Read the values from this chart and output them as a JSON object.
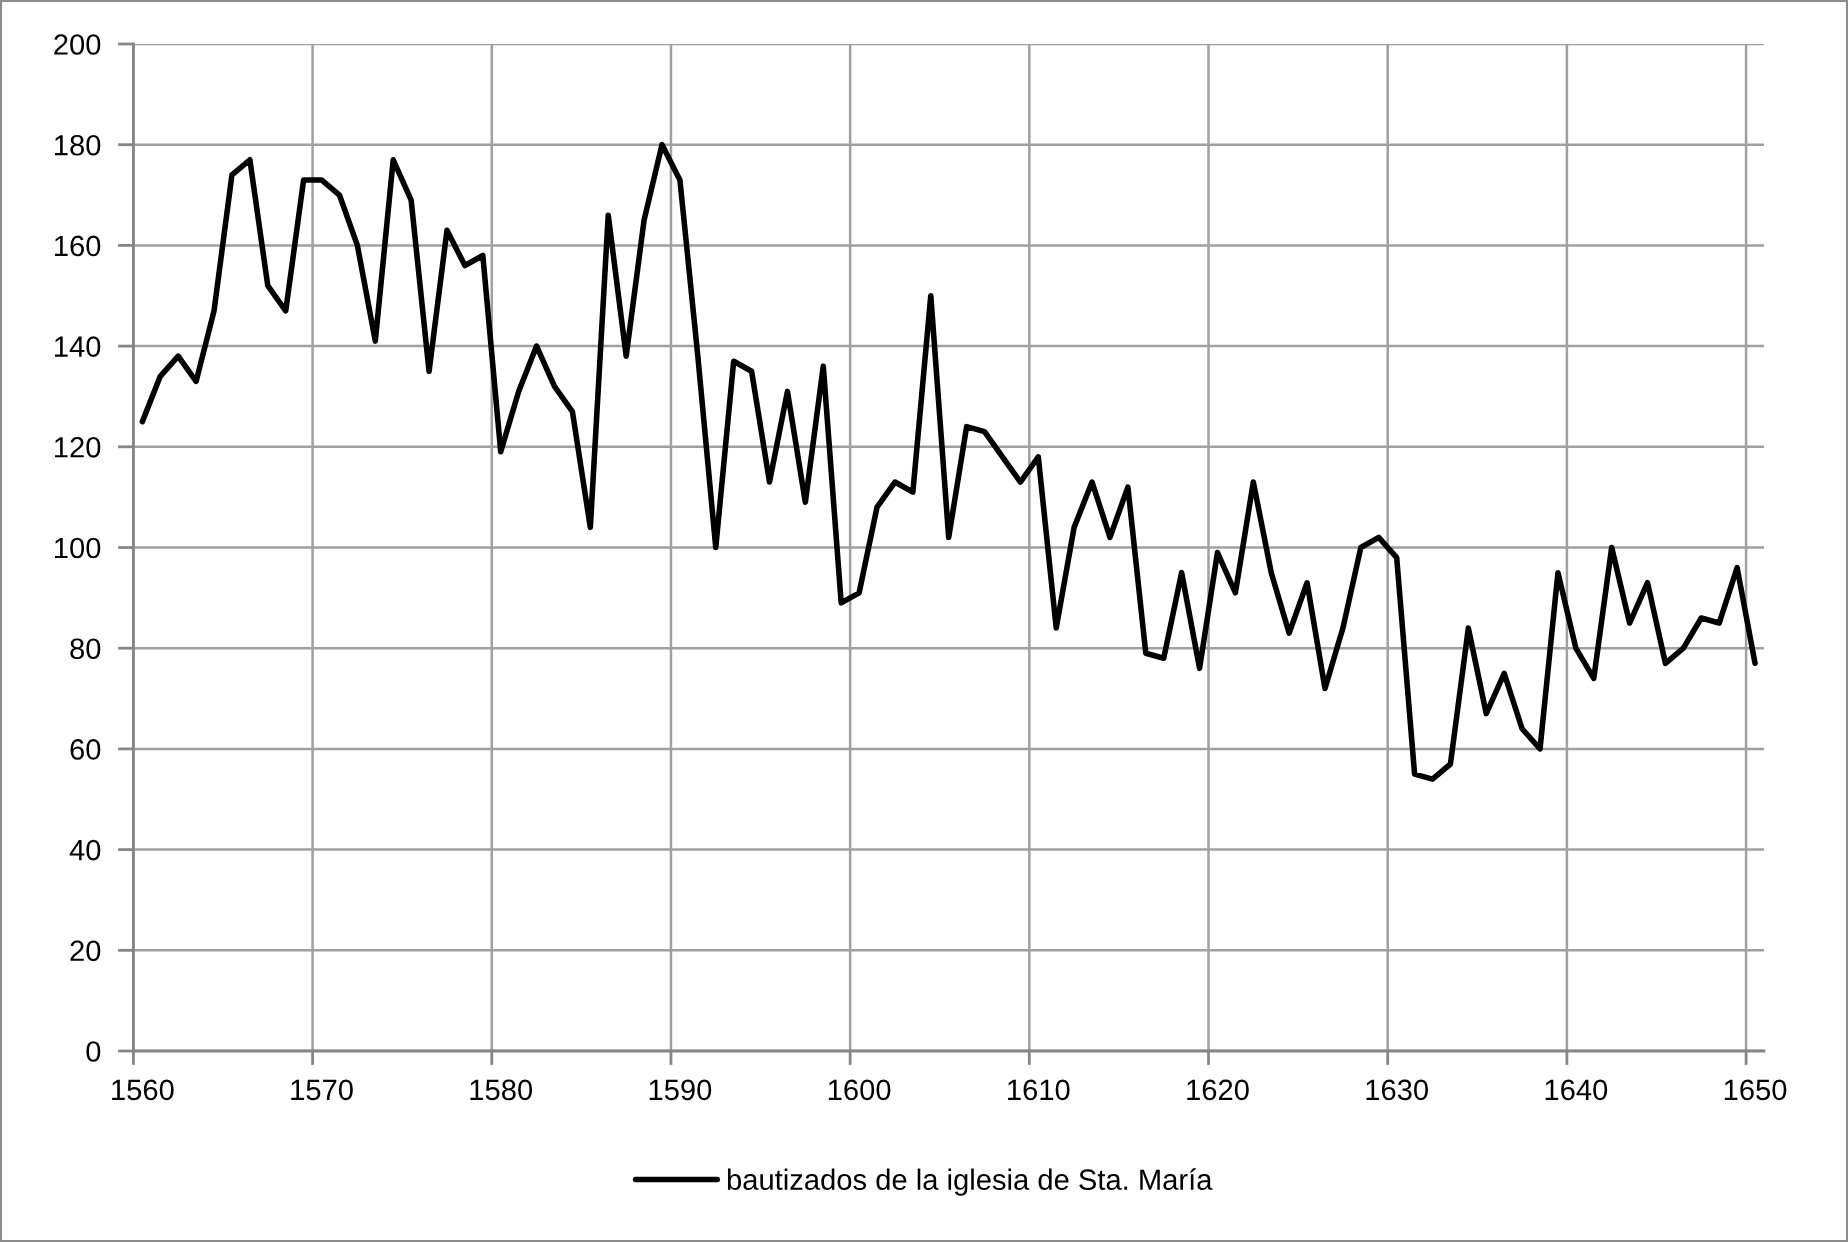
{
  "chart_data": {
    "type": "line",
    "categories": [
      "1560",
      null,
      null,
      null,
      null,
      null,
      null,
      null,
      null,
      null,
      "1570",
      null,
      null,
      null,
      null,
      null,
      null,
      null,
      null,
      null,
      "1580",
      null,
      null,
      null,
      null,
      null,
      null,
      null,
      null,
      null,
      "1590",
      null,
      null,
      null,
      null,
      null,
      null,
      null,
      null,
      null,
      "1600",
      null,
      null,
      null,
      null,
      null,
      null,
      null,
      null,
      null,
      "1610",
      null,
      null,
      null,
      null,
      null,
      null,
      null,
      null,
      null,
      "1620",
      null,
      null,
      null,
      null,
      null,
      null,
      null,
      null,
      null,
      "1630",
      null,
      null,
      null,
      null,
      null,
      null,
      null,
      null,
      null,
      "1640",
      null,
      null,
      null,
      null,
      null,
      null,
      null,
      null,
      null,
      "1650"
    ],
    "series": [
      {
        "name": "bautizados de la iglesia de Sta. María",
        "color": "#000000",
        "values": [
          125,
          134,
          138,
          133,
          147,
          174,
          177,
          152,
          147,
          173,
          173,
          170,
          160,
          141,
          177,
          169,
          135,
          163,
          156,
          158,
          119,
          131,
          140,
          132,
          127,
          104,
          166,
          138,
          165,
          180,
          173,
          138,
          100,
          137,
          135,
          113,
          131,
          109,
          136,
          89,
          91,
          108,
          113,
          111,
          150,
          102,
          124,
          123,
          118,
          113,
          118,
          84,
          104,
          113,
          102,
          112,
          79,
          78,
          95,
          76,
          99,
          91,
          113,
          95,
          83,
          93,
          72,
          84,
          100,
          102,
          98,
          55,
          54,
          57,
          84,
          67,
          75,
          64,
          60,
          95,
          80,
          74,
          100,
          85,
          93,
          77,
          80,
          86,
          85,
          96,
          77
        ]
      }
    ],
    "ylim": [
      0,
      200
    ],
    "yticks": [
      0,
      20,
      40,
      60,
      80,
      100,
      120,
      140,
      160,
      180,
      200
    ],
    "grid": true,
    "legend": "bottom",
    "marker": "none",
    "line_style": "solid"
  }
}
